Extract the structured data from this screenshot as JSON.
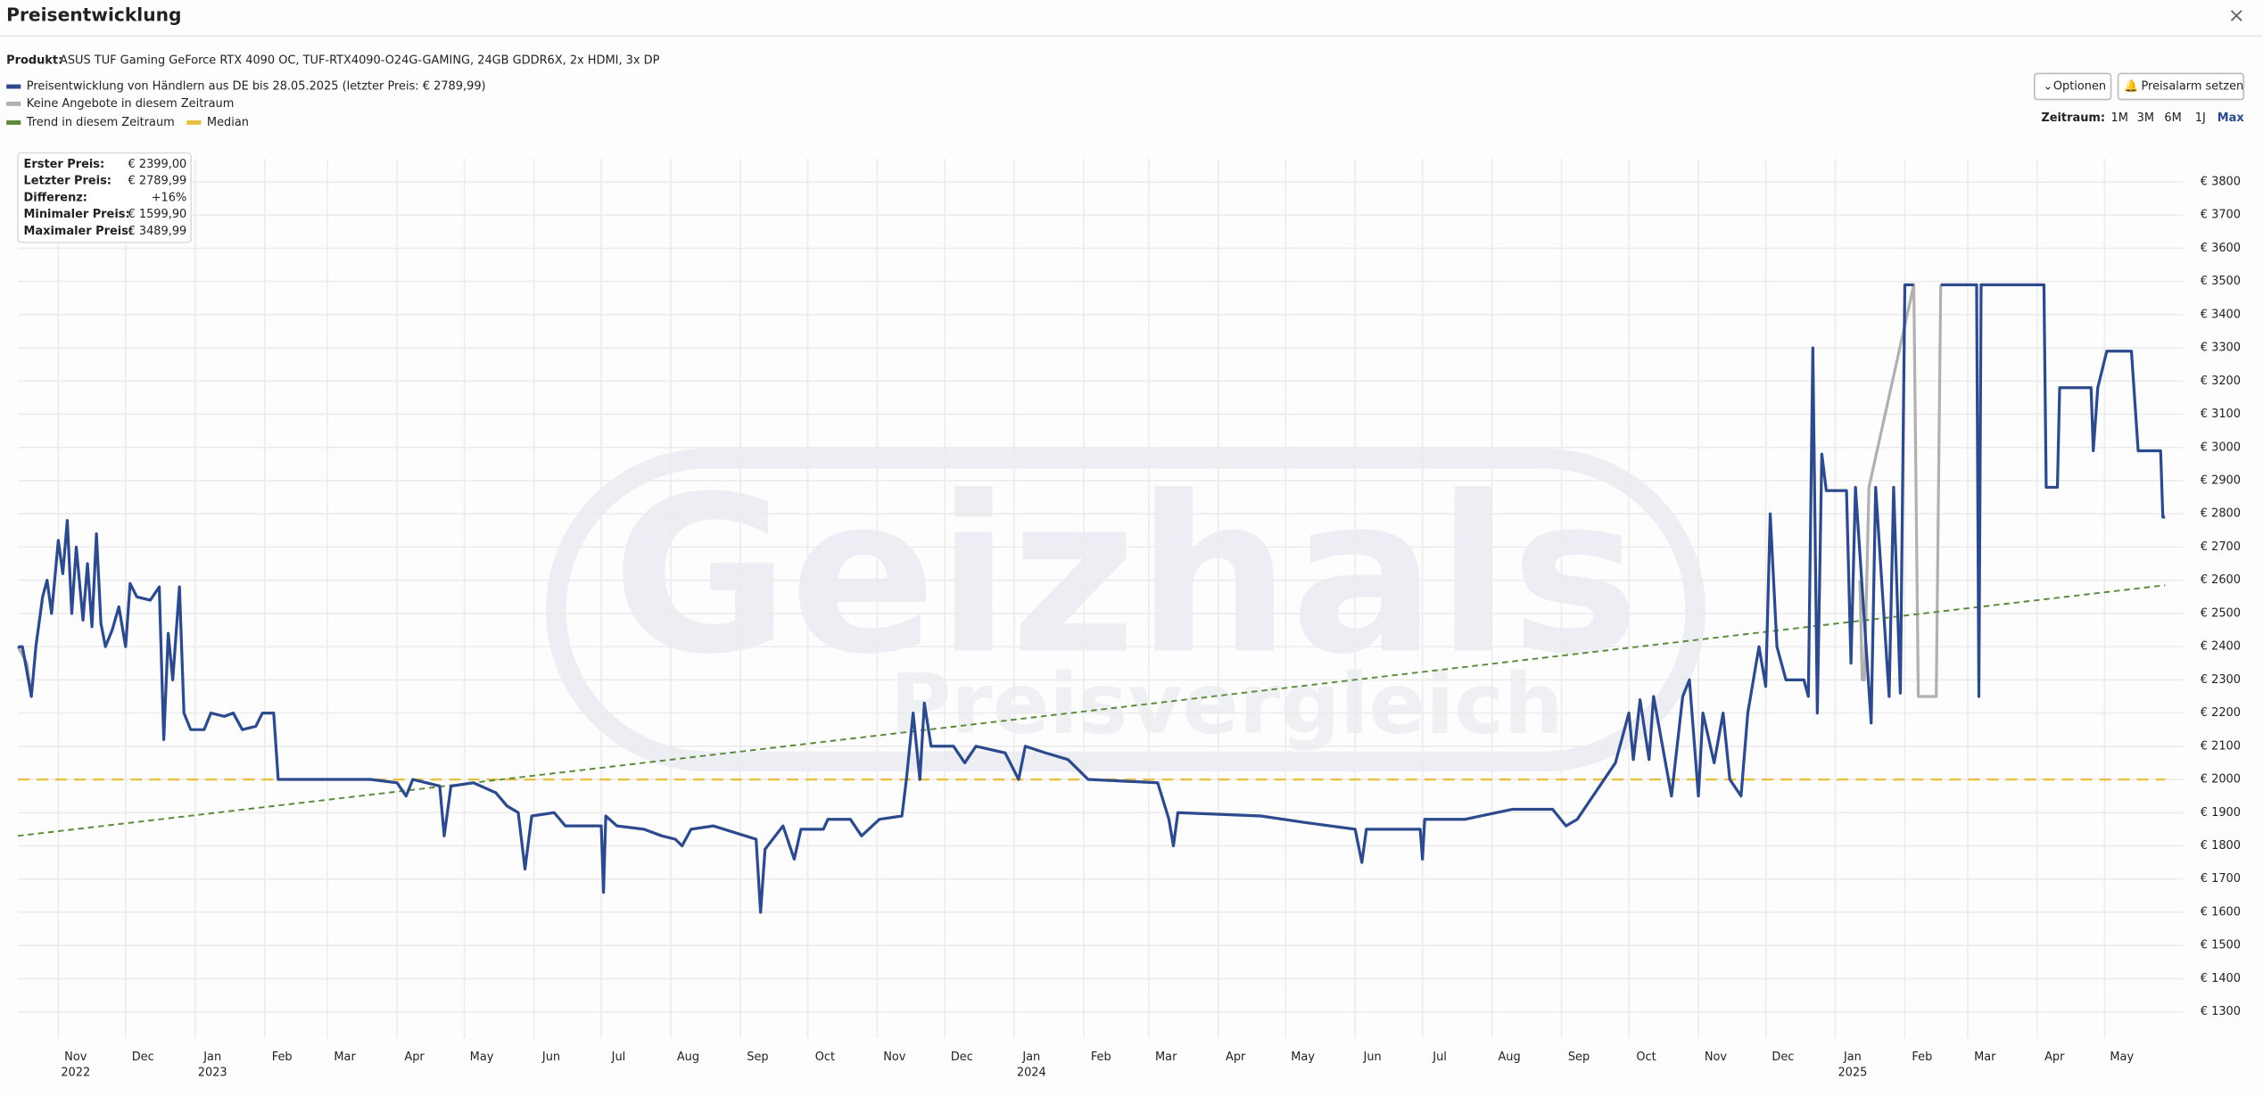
{
  "header": {
    "title": "Preisentwicklung",
    "close": "×"
  },
  "product": {
    "label": "Produkt:",
    "name": "ASUS TUF Gaming GeForce RTX 4090 OC, TUF-RTX4090-O24G-GAMING, 24GB GDDR6X, 2x HDMI, 3x DP"
  },
  "buttons": {
    "options": "Optionen",
    "alarm": "Preisalarm setzen"
  },
  "range": {
    "label": "Zeitraum:",
    "options": [
      "1M",
      "3M",
      "6M",
      "1J",
      "Max"
    ],
    "active": 4
  },
  "watermark": [
    "Geizhals",
    "Preisvergleich"
  ],
  "info_box": {
    "rows": [
      [
        "Erster Preis:",
        "€ 2399,00"
      ],
      [
        "Letzter Preis:",
        "€ 2789,99"
      ],
      [
        "Differenz:",
        "+16%"
      ],
      [
        "Minimaler Preis:",
        "€ 1599,90"
      ],
      [
        "Maximaler Preis:",
        "€ 3489,99"
      ]
    ]
  },
  "chart_data": {
    "type": "line",
    "grid": true,
    "legend": "top-left",
    "xlim": [
      "2022-10-14",
      "2025-06-05"
    ],
    "ylim": [
      1255,
      3870
    ],
    "yticks": [
      {
        "value": 1300,
        "label": "€ 1300"
      },
      {
        "value": 1400,
        "label": "€ 1400"
      },
      {
        "value": 1500,
        "label": "€ 1500"
      },
      {
        "value": 1600,
        "label": "€ 1600"
      },
      {
        "value": 1700,
        "label": "€ 1700"
      },
      {
        "value": 1800,
        "label": "€ 1800"
      },
      {
        "value": 1900,
        "label": "€ 1900"
      },
      {
        "value": 2000,
        "label": "€ 2000"
      },
      {
        "value": 2100,
        "label": "€ 2100"
      },
      {
        "value": 2200,
        "label": "€ 2200"
      },
      {
        "value": 2300,
        "label": "€ 2300"
      },
      {
        "value": 2400,
        "label": "€ 2400"
      },
      {
        "value": 2500,
        "label": "€ 2500"
      },
      {
        "value": 2600,
        "label": "€ 2600"
      },
      {
        "value": 2700,
        "label": "€ 2700"
      },
      {
        "value": 2800,
        "label": "€ 2800"
      },
      {
        "value": 2900,
        "label": "€ 2900"
      },
      {
        "value": 3000,
        "label": "€ 3000"
      },
      {
        "value": 3100,
        "label": "€ 3100"
      },
      {
        "value": 3200,
        "label": "€ 3200"
      },
      {
        "value": 3300,
        "label": "€ 3300"
      },
      {
        "value": 3400,
        "label": "€ 3400"
      },
      {
        "value": 3500,
        "label": "€ 3500"
      },
      {
        "value": 3600,
        "label": "€ 3600"
      },
      {
        "value": 3700,
        "label": "€ 3700"
      },
      {
        "value": 3800,
        "label": "€ 3800"
      }
    ],
    "xticks": [
      {
        "value": "2022-11",
        "label": "Nov"
      },
      {
        "value": "2022-12",
        "label": "Dec"
      },
      {
        "value": "2023-01",
        "label": "Jan"
      },
      {
        "value": "2023-02",
        "label": "Feb"
      },
      {
        "value": "2023-03",
        "label": "Mar"
      },
      {
        "value": "2023-04",
        "label": "Apr"
      },
      {
        "value": "2023-05",
        "label": "May"
      },
      {
        "value": "2023-06",
        "label": "Jun"
      },
      {
        "value": "2023-07",
        "label": "Jul"
      },
      {
        "value": "2023-08",
        "label": "Aug"
      },
      {
        "value": "2023-09",
        "label": "Sep"
      },
      {
        "value": "2023-10",
        "label": "Oct"
      },
      {
        "value": "2023-11",
        "label": "Nov"
      },
      {
        "value": "2023-12",
        "label": "Dec"
      },
      {
        "value": "2024-01",
        "label": "Jan"
      },
      {
        "value": "2024-02",
        "label": "Feb"
      },
      {
        "value": "2024-03",
        "label": "Mar"
      },
      {
        "value": "2024-04",
        "label": "Apr"
      },
      {
        "value": "2024-05",
        "label": "May"
      },
      {
        "value": "2024-06",
        "label": "Jun"
      },
      {
        "value": "2024-07",
        "label": "Jul"
      },
      {
        "value": "2024-08",
        "label": "Aug"
      },
      {
        "value": "2024-09",
        "label": "Sep"
      },
      {
        "value": "2024-10",
        "label": "Oct"
      },
      {
        "value": "2024-11",
        "label": "Nov"
      },
      {
        "value": "2024-12",
        "label": "Dec"
      },
      {
        "value": "2025-01",
        "label": "Jan"
      },
      {
        "value": "2025-02",
        "label": "Feb"
      },
      {
        "value": "2025-03",
        "label": "Mar"
      },
      {
        "value": "2025-04",
        "label": "Apr"
      },
      {
        "value": "2025-05",
        "label": "May"
      }
    ],
    "xyears": [
      {
        "value": "2022-11",
        "label": "2022"
      },
      {
        "value": "2023-01",
        "label": "2023"
      },
      {
        "value": "2024-01",
        "label": "2024"
      },
      {
        "value": "2025-01",
        "label": "2025"
      }
    ],
    "series": [
      {
        "name": "Preisentwicklung von Händlern aus DE bis 28.05.2025 (letzter Preis: € 2789,99)",
        "color": "#2c4a8c",
        "width": 2,
        "x": [
          "2022-10-14",
          "2022-10-16",
          "2022-10-20",
          "2022-10-22",
          "2022-10-25",
          "2022-10-27",
          "2022-10-29",
          "2022-11-01",
          "2022-11-03",
          "2022-11-05",
          "2022-11-07",
          "2022-11-09",
          "2022-11-12",
          "2022-11-14",
          "2022-11-16",
          "2022-11-18",
          "2022-11-20",
          "2022-11-22",
          "2022-11-25",
          "2022-11-28",
          "2022-12-01",
          "2022-12-03",
          "2022-12-06",
          "2022-12-12",
          "2022-12-16",
          "2022-12-18",
          "2022-12-20",
          "2022-12-22",
          "2022-12-25",
          "2022-12-27",
          "2022-12-30",
          "2023-01-05",
          "2023-01-08",
          "2023-01-14",
          "2023-01-18",
          "2023-01-22",
          "2023-01-28",
          "2023-01-31",
          "2023-02-05",
          "2023-02-07",
          "2023-03-20",
          "2023-04-01",
          "2023-04-05",
          "2023-04-08",
          "2023-04-20",
          "2023-04-22",
          "2023-04-25",
          "2023-05-05",
          "2023-05-15",
          "2023-05-20",
          "2023-05-25",
          "2023-05-28",
          "2023-05-31",
          "2023-06-10",
          "2023-06-15",
          "2023-07-01",
          "2023-07-02",
          "2023-07-03",
          "2023-07-08",
          "2023-07-20",
          "2023-07-28",
          "2023-08-03",
          "2023-08-06",
          "2023-08-10",
          "2023-08-20",
          "2023-09-08",
          "2023-09-10",
          "2023-09-12",
          "2023-09-20",
          "2023-09-25",
          "2023-09-28",
          "2023-10-08",
          "2023-10-10",
          "2023-10-20",
          "2023-10-25",
          "2023-11-02",
          "2023-11-12",
          "2023-11-14",
          "2023-11-17",
          "2023-11-20",
          "2023-11-22",
          "2023-11-25",
          "2023-12-05",
          "2023-12-10",
          "2023-12-15",
          "2023-12-28",
          "2024-01-03",
          "2024-01-06",
          "2024-01-15",
          "2024-01-25",
          "2024-02-03",
          "2024-03-05",
          "2024-03-10",
          "2024-03-12",
          "2024-03-14",
          "2024-04-20",
          "2024-05-10",
          "2024-06-01",
          "2024-06-04",
          "2024-06-06",
          "2024-06-30",
          "2024-07-01",
          "2024-07-02",
          "2024-07-20",
          "2024-08-10",
          "2024-08-28",
          "2024-09-03",
          "2024-09-08",
          "2024-09-15",
          "2024-09-25",
          "2024-10-01",
          "2024-10-03",
          "2024-10-06",
          "2024-10-10",
          "2024-10-12",
          "2024-10-20",
          "2024-10-25",
          "2024-10-28",
          "2024-11-01",
          "2024-11-03",
          "2024-11-08",
          "2024-11-12",
          "2024-11-15",
          "2024-11-20",
          "2024-11-23",
          "2024-11-28",
          "2024-12-01",
          "2024-12-03",
          "2024-12-06",
          "2024-12-10",
          "2024-12-18",
          "2024-12-20",
          "2024-12-22",
          "2024-12-24",
          "2024-12-26",
          "2024-12-28",
          "2025-01-06",
          "2025-01-08",
          "2025-01-10",
          "2025-01-17",
          "2025-01-19",
          "2025-01-25",
          "2025-01-27",
          "2025-01-30",
          "2025-02-01",
          "2025-02-05",
          "2025-02-10",
          "2025-02-17",
          "2025-03-05",
          "2025-03-06",
          "2025-03-07",
          "2025-04-04",
          "2025-04-05",
          "2025-04-10",
          "2025-04-11",
          "2025-04-25",
          "2025-04-26",
          "2025-04-28",
          "2025-05-02",
          "2025-05-13",
          "2025-05-16",
          "2025-05-26",
          "2025-05-27",
          "2025-05-28"
        ],
        "values": [
          2399,
          2400,
          2250,
          2400,
          2550,
          2600,
          2500,
          2720,
          2620,
          2780,
          2500,
          2700,
          2480,
          2650,
          2460,
          2740,
          2470,
          2400,
          2450,
          2520,
          2400,
          2590,
          2550,
          2540,
          2580,
          2120,
          2440,
          2300,
          2580,
          2200,
          2150,
          2150,
          2200,
          2190,
          2200,
          2150,
          2160,
          2200,
          2200,
          2000,
          2000,
          1990,
          1950,
          2000,
          1980,
          1830,
          1980,
          1990,
          1960,
          1920,
          1900,
          1730,
          1890,
          1900,
          1860,
          1860,
          1660,
          1890,
          1860,
          1850,
          1830,
          1820,
          1800,
          1850,
          1860,
          1820,
          1599.9,
          1790,
          1860,
          1760,
          1850,
          1850,
          1880,
          1880,
          1830,
          1880,
          1890,
          2000,
          2200,
          2000,
          2230,
          2100,
          2100,
          2050,
          2100,
          2080,
          2000,
          2100,
          2080,
          2060,
          2000,
          1990,
          1880,
          1800,
          1900,
          1890,
          1870,
          1850,
          1750,
          1850,
          1850,
          1760,
          1880,
          1880,
          1910,
          1910,
          1860,
          1880,
          1950,
          2050,
          2200,
          2060,
          2240,
          2060,
          2250,
          1950,
          2250,
          2300,
          1950,
          2200,
          2050,
          2200,
          2000,
          1950,
          2200,
          2400,
          2280,
          2800,
          2400,
          2300,
          2300,
          2250,
          3300,
          2200,
          2980,
          2870,
          2870,
          2350,
          2880,
          2170,
          2880,
          2250,
          2880,
          2260,
          3489.99,
          3489.99,
          null,
          3489.99,
          3489.99,
          2250,
          3489.99,
          3489.99,
          2880,
          2880,
          3180,
          3180,
          2990,
          3180,
          3290,
          3290,
          2990,
          2990,
          2789.99,
          2789.99
        ]
      },
      {
        "name": "Keine Angebote in diesem Zeitraum",
        "color": "#b0b0b0",
        "width": 2,
        "x": [
          "2022-10-14",
          "2022-10-18",
          "2022-10-20",
          "2022-10-21",
          "2025-01-12",
          "2025-01-13",
          "2025-01-14",
          "2025-01-16",
          "2025-02-05",
          "2025-02-07",
          "2025-02-15",
          "2025-02-17"
        ],
        "values": [
          2400,
          2350,
          2250,
          null,
          2600,
          2300,
          2300,
          2880,
          3489.99,
          2250,
          2250,
          3489.99
        ]
      },
      {
        "name": "Trend in diesem Zeitraum",
        "color": "#5a8a3a",
        "width": 1.2,
        "dash": "4 3",
        "x": [
          "2022-10-14",
          "2025-05-28"
        ],
        "values": [
          1830,
          2585
        ]
      },
      {
        "name": "Median",
        "color": "#e8c040",
        "width": 1.5,
        "dash": "8 5",
        "x": [
          "2022-10-14",
          "2025-05-28"
        ],
        "values": [
          2000,
          2000
        ]
      }
    ]
  }
}
